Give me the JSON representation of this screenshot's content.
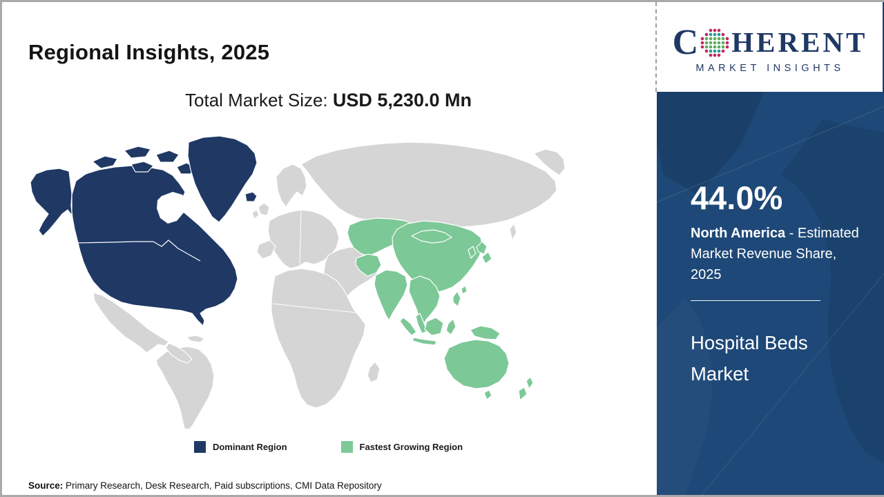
{
  "header": {
    "title": "Regional Insights, 2025"
  },
  "logo": {
    "c": "C",
    "rest": "HERENT",
    "sub": "MARKET INSIGHTS",
    "globe_icon_colors": {
      "outer_ring": "#c2255c",
      "teal": "#1f9d93",
      "green": "#5cab5c"
    },
    "text_color": "#1f3864"
  },
  "market": {
    "label": "Total Market Size: ",
    "value": "USD 5,230.0 Mn"
  },
  "legend": {
    "dominant": {
      "label": "Dominant Region",
      "color": "#1f3864"
    },
    "fastest": {
      "label": "Fastest Growing Region",
      "color": "#7cc897"
    }
  },
  "sidebar": {
    "share": "44.0%",
    "region": "North America",
    "share_desc": " - Estimated Market Revenue Share, 2025",
    "market_name": "Hospital Beds Market",
    "bg_color": "#1e4877"
  },
  "source": {
    "label": "Source:",
    "text": " Primary Research, Desk Research, Paid subscriptions, CMI Data Repository"
  },
  "map": {
    "land_default_color": "#d5d5d5",
    "dominant_color": "#1f3864",
    "fastest_color": "#7cc897",
    "dominant_region": "North America",
    "fastest_region": "Asia Pacific"
  },
  "chart_data": {
    "type": "choropleth_map",
    "title": "Regional Insights, 2025",
    "subtitle": "Total Market Size: USD 5,230.0 Mn",
    "market": "Hospital Beds Market",
    "total_market_size_usd_mn": 5230.0,
    "regions": [
      {
        "name": "North America",
        "role": "Dominant Region",
        "estimated_market_revenue_share_2025_pct": 44.0,
        "color": "#1f3864"
      },
      {
        "name": "Asia Pacific",
        "role": "Fastest Growing Region",
        "color": "#7cc897"
      }
    ],
    "legend_entries": [
      "Dominant Region",
      "Fastest Growing Region"
    ],
    "source": "Primary Research, Desk Research, Paid subscriptions, CMI Data Repository"
  }
}
